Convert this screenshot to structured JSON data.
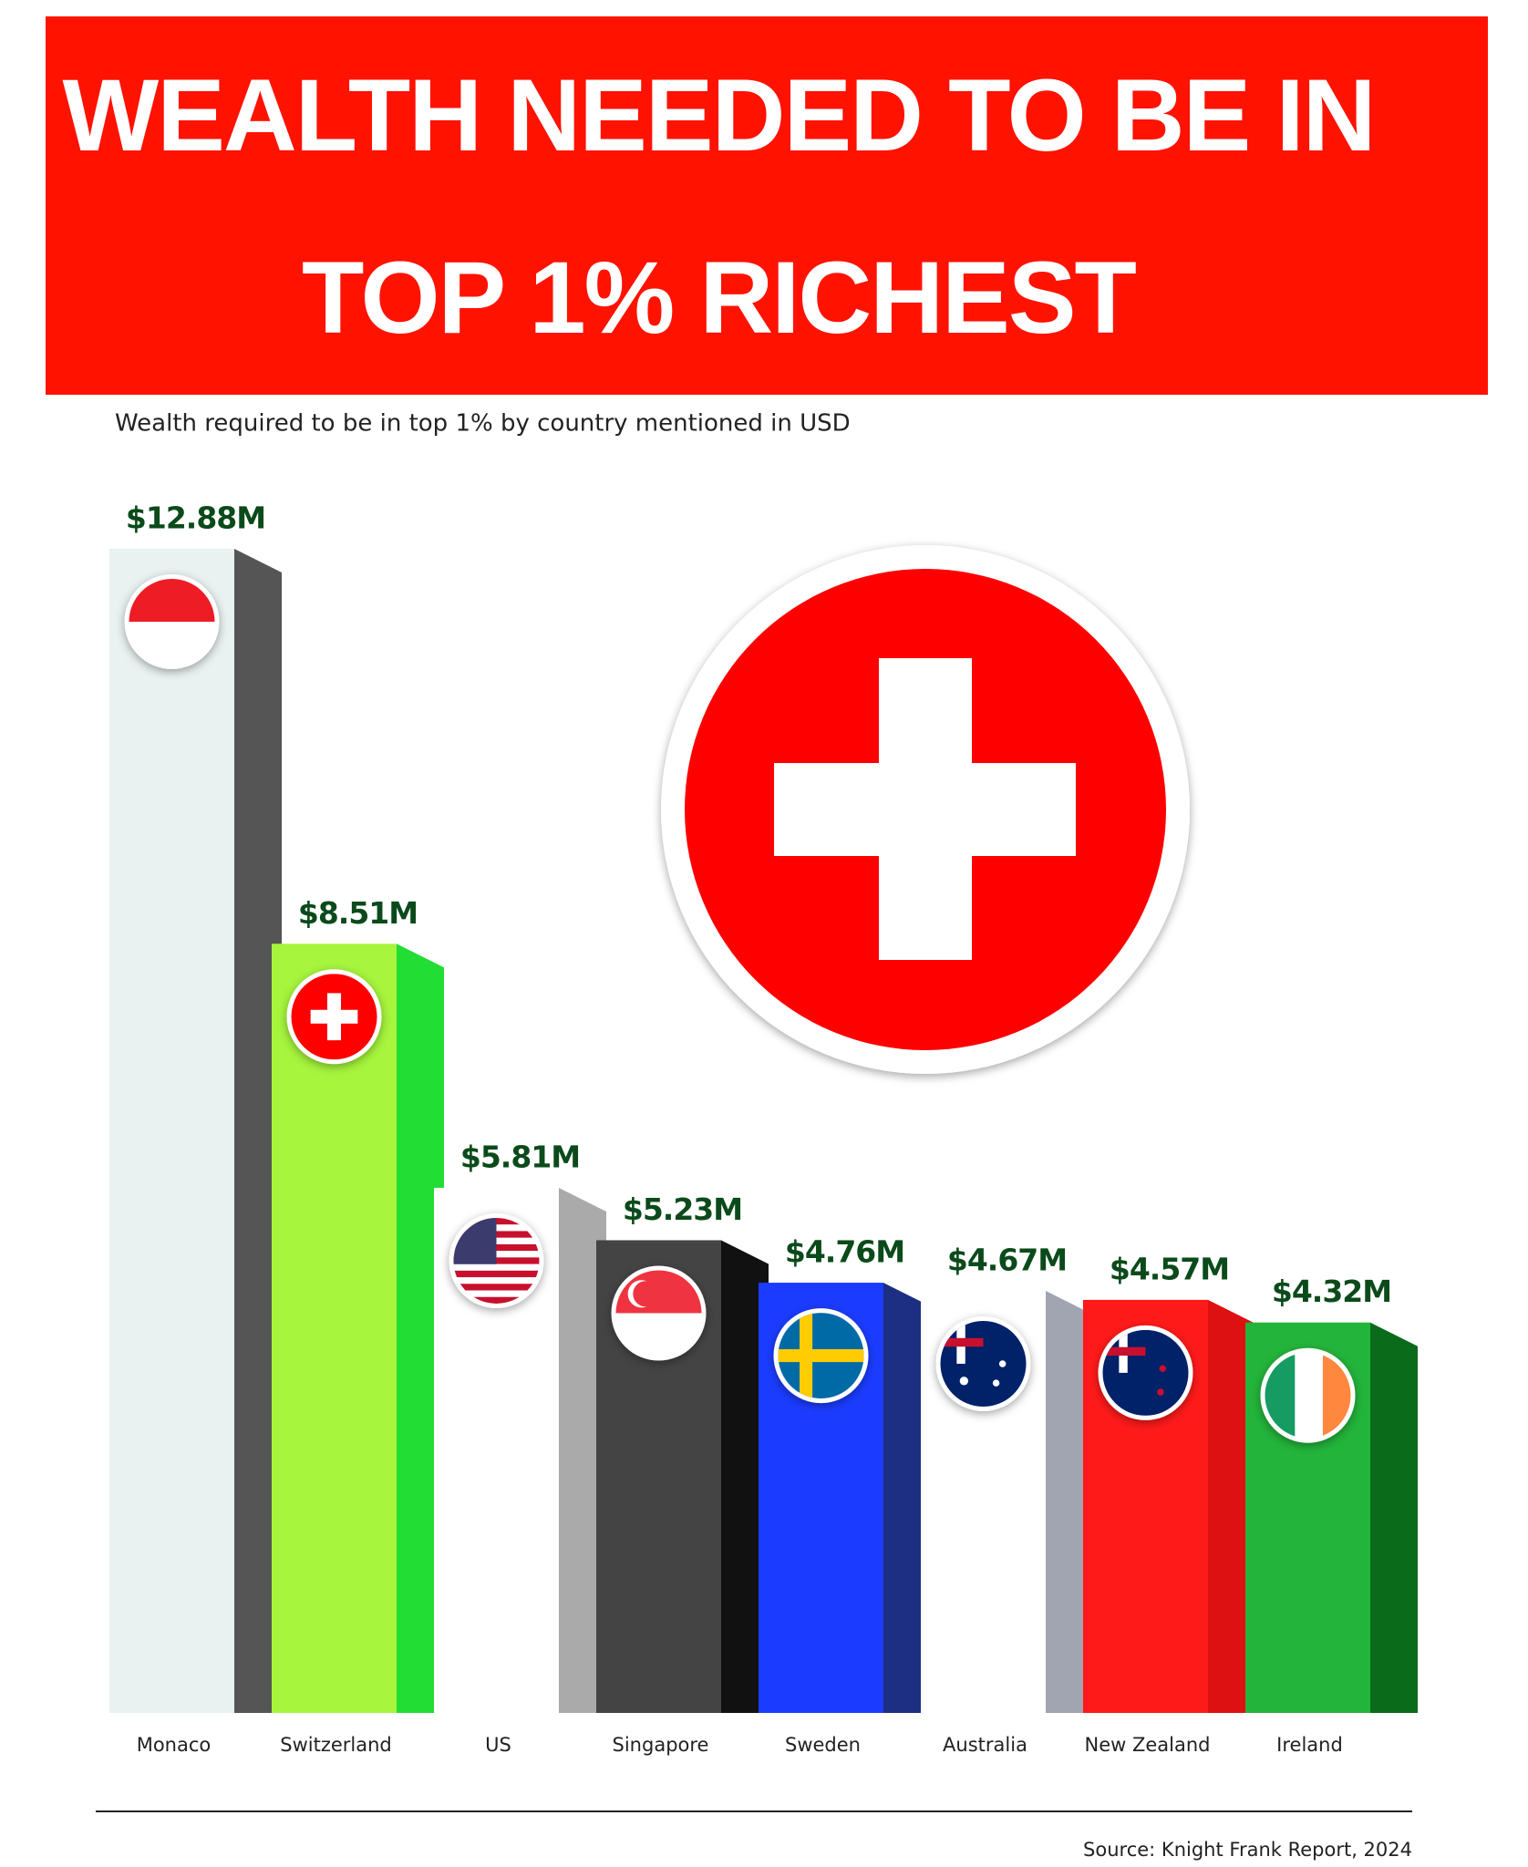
{
  "chart_data": {
    "type": "bar3d",
    "title": "WEALTH NEEDED TO BE IN TOP 1% RICHEST",
    "subtitle": "Wealth required to be in top 1% by country mentioned in USD",
    "categories": [
      "Monaco",
      "Switzerland",
      "US",
      "Singapore",
      "Sweden",
      "Australia",
      "New Zealand",
      "Ireland"
    ],
    "values": [
      12.88,
      8.51,
      5.81,
      5.23,
      4.76,
      4.67,
      4.57,
      4.32
    ],
    "value_labels": [
      "$12.88M",
      "$8.51M",
      "$5.81M",
      "$5.23M",
      "$4.76M",
      "$4.67M",
      "$4.57M",
      "$4.32M"
    ],
    "colors": [
      "#e9f1f1",
      "#a7f53d",
      "#ffffff",
      "#444444",
      "#1b3cff",
      "#ffffff",
      "#ff1a1a",
      "#23b43b"
    ],
    "side_colors": [
      "#555555",
      "#22dd33",
      "#aaaaaa",
      "#111111",
      "#1c2f82",
      "#a1a4b1",
      "#dd1111",
      "#0a6b1b"
    ],
    "source": "Source: Knight Frank Report, 2024"
  }
}
